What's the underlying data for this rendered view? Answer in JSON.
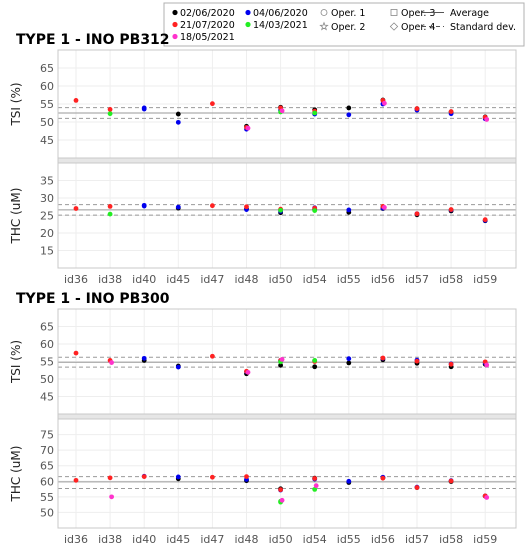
{
  "legend": {
    "dates": [
      {
        "label": "02/06/2020",
        "color": "#000000"
      },
      {
        "label": "04/06/2020",
        "color": "#0000ee"
      },
      {
        "label": "21/07/2020",
        "color": "#ff2222"
      },
      {
        "label": "14/03/2021",
        "color": "#22ee22"
      },
      {
        "label": "18/05/2021",
        "color": "#ff33cc"
      }
    ],
    "operators": [
      {
        "label": "Oper. 1",
        "marker": "circle"
      },
      {
        "label": "Oper. 2",
        "marker": "star"
      },
      {
        "label": "Oper. 3",
        "marker": "square"
      },
      {
        "label": "Oper. 4",
        "marker": "diamond"
      }
    ],
    "lines": [
      {
        "label": "Average",
        "style": "solid"
      },
      {
        "label": "Standard dev.",
        "style": "dashed"
      }
    ]
  },
  "chart_data": [
    {
      "type": "scatter",
      "title": "TYPE 1 - INO PB312",
      "ylabel": "TSI (%)",
      "categories": [
        "id36",
        "id38",
        "id40",
        "id45",
        "id47",
        "id48",
        "id50",
        "id54",
        "id55",
        "id56",
        "id57",
        "id58",
        "id59"
      ],
      "ylim": [
        40,
        70
      ],
      "yticks": [
        45,
        50,
        55,
        60,
        65
      ],
      "average": 52.5,
      "std_band": [
        51,
        54
      ],
      "series": [
        {
          "name": "02/06/2020",
          "color": "#000000",
          "points": [
            [
              3,
              52.2
            ],
            [
              5,
              48.8
            ],
            [
              6,
              54.1
            ],
            [
              7,
              53.4
            ],
            [
              8,
              53.9
            ],
            [
              9,
              56.1
            ],
            [
              10,
              53.7
            ],
            [
              11,
              52.8
            ],
            [
              12,
              51.4
            ]
          ]
        },
        {
          "name": "04/06/2020",
          "color": "#0000ee",
          "points": [
            [
              2,
              53.6
            ],
            [
              2,
              53.9
            ],
            [
              3,
              49.9
            ],
            [
              5,
              48.0
            ],
            [
              6,
              53.3
            ],
            [
              7,
              52.2
            ],
            [
              8,
              52.0
            ],
            [
              9,
              55.0
            ],
            [
              10,
              53.3
            ],
            [
              11,
              52.3
            ],
            [
              12,
              50.9
            ]
          ]
        },
        {
          "name": "21/07/2020",
          "color": "#ff2222",
          "points": [
            [
              0,
              56.0
            ],
            [
              1,
              53.5
            ],
            [
              4,
              55.1
            ],
            [
              5,
              48.5
            ],
            [
              6,
              53.9
            ],
            [
              7,
              53.0
            ],
            [
              9,
              56.0
            ],
            [
              10,
              53.7
            ],
            [
              11,
              52.9
            ],
            [
              12,
              51.3
            ]
          ]
        },
        {
          "name": "14/03/2021",
          "color": "#22ee22",
          "points": [
            [
              1,
              52.3
            ],
            [
              6,
              52.8
            ],
            [
              7,
              52.5
            ]
          ]
        },
        {
          "name": "18/05/2021",
          "color": "#ff33cc",
          "points": [
            [
              5,
              48.3
            ],
            [
              6,
              53.1
            ],
            [
              9,
              55.2
            ],
            [
              12,
              50.7
            ]
          ]
        }
      ]
    },
    {
      "type": "scatter",
      "ylabel": "THC (uM)",
      "categories": [
        "id36",
        "id38",
        "id40",
        "id45",
        "id47",
        "id48",
        "id50",
        "id54",
        "id55",
        "id56",
        "id57",
        "id58",
        "id59"
      ],
      "ylim": [
        10,
        40
      ],
      "yticks": [
        15,
        20,
        25,
        30,
        35
      ],
      "average": 26.6,
      "std_band": [
        25.1,
        28.1
      ],
      "series": [
        {
          "name": "02/06/2020",
          "color": "#000000",
          "points": [
            [
              3,
              27.1
            ],
            [
              5,
              26.9
            ],
            [
              6,
              25.8
            ],
            [
              7,
              26.8
            ],
            [
              8,
              25.9
            ],
            [
              9,
              27.0
            ],
            [
              10,
              25.2
            ],
            [
              11,
              26.3
            ],
            [
              12,
              23.5
            ]
          ]
        },
        {
          "name": "04/06/2020",
          "color": "#0000ee",
          "points": [
            [
              2,
              27.7
            ],
            [
              2,
              27.9
            ],
            [
              3,
              27.4
            ],
            [
              5,
              26.7
            ],
            [
              6,
              26.2
            ],
            [
              7,
              27.2
            ],
            [
              8,
              26.6
            ],
            [
              9,
              27.1
            ],
            [
              10,
              25.5
            ],
            [
              11,
              26.6
            ],
            [
              12,
              23.6
            ]
          ]
        },
        {
          "name": "21/07/2020",
          "color": "#ff2222",
          "points": [
            [
              0,
              27.0
            ],
            [
              1,
              27.6
            ],
            [
              4,
              27.8
            ],
            [
              5,
              27.5
            ],
            [
              6,
              26.8
            ],
            [
              7,
              27.1
            ],
            [
              9,
              27.6
            ],
            [
              10,
              25.5
            ],
            [
              11,
              26.7
            ],
            [
              12,
              23.8
            ]
          ]
        },
        {
          "name": "14/03/2021",
          "color": "#22ee22",
          "points": [
            [
              1,
              25.4
            ],
            [
              6,
              26.5
            ],
            [
              7,
              26.4
            ]
          ]
        },
        {
          "name": "18/05/2021",
          "color": "#ff33cc",
          "points": [
            [
              9,
              27.3
            ]
          ]
        }
      ]
    },
    {
      "type": "scatter",
      "title": "TYPE 1 - INO PB300",
      "ylabel": "TSI (%)",
      "categories": [
        "id36",
        "id38",
        "id40",
        "id45",
        "id47",
        "id48",
        "id50",
        "id54",
        "id55",
        "id56",
        "id57",
        "id58",
        "id59"
      ],
      "ylim": [
        40,
        70
      ],
      "yticks": [
        45,
        50,
        55,
        60,
        65
      ],
      "average": 54.8,
      "std_band": [
        53.4,
        56.2
      ],
      "series": [
        {
          "name": "02/06/2020",
          "color": "#000000",
          "points": [
            [
              2,
              55.3
            ],
            [
              3,
              53.7
            ],
            [
              5,
              51.5
            ],
            [
              6,
              53.9
            ],
            [
              7,
              53.5
            ],
            [
              8,
              54.6
            ],
            [
              9,
              55.5
            ],
            [
              10,
              54.5
            ],
            [
              11,
              53.5
            ],
            [
              12,
              54.2
            ]
          ]
        },
        {
          "name": "04/06/2020",
          "color": "#0000ee",
          "points": [
            [
              2,
              55.9
            ],
            [
              3,
              53.4
            ],
            [
              5,
              52.1
            ],
            [
              6,
              55.3
            ],
            [
              7,
              55.2
            ],
            [
              8,
              55.8
            ],
            [
              9,
              55.9
            ],
            [
              10,
              55.4
            ],
            [
              11,
              54.3
            ],
            [
              12,
              54.6
            ]
          ]
        },
        {
          "name": "21/07/2020",
          "color": "#ff2222",
          "points": [
            [
              0,
              57.4
            ],
            [
              1,
              55.3
            ],
            [
              4,
              56.5
            ],
            [
              5,
              52.2
            ],
            [
              6,
              55.3
            ],
            [
              7,
              55.0
            ],
            [
              9,
              56.0
            ],
            [
              10,
              55.1
            ],
            [
              11,
              54.2
            ],
            [
              12,
              54.9
            ]
          ]
        },
        {
          "name": "14/03/2021",
          "color": "#22ee22",
          "points": [
            [
              6,
              54.9
            ],
            [
              7,
              55.3
            ]
          ]
        },
        {
          "name": "18/05/2021",
          "color": "#ff33cc",
          "points": [
            [
              1,
              54.7
            ],
            [
              5,
              51.9
            ],
            [
              6,
              55.6
            ],
            [
              12,
              54.0
            ]
          ]
        }
      ]
    },
    {
      "type": "scatter",
      "ylabel": "THC (uM)",
      "categories": [
        "id36",
        "id38",
        "id40",
        "id45",
        "id47",
        "id48",
        "id50",
        "id54",
        "id55",
        "id56",
        "id57",
        "id58",
        "id59"
      ],
      "ylim": [
        45,
        80
      ],
      "yticks": [
        50,
        55,
        60,
        65,
        70,
        75
      ],
      "average": 59.8,
      "std_band": [
        57.7,
        61.5
      ],
      "series": [
        {
          "name": "02/06/2020",
          "color": "#000000",
          "points": [
            [
              3,
              60.8
            ],
            [
              5,
              60.2
            ],
            [
              6,
              57.6
            ],
            [
              7,
              61.0
            ],
            [
              8,
              59.6
            ],
            [
              9,
              61.1
            ],
            [
              10,
              58.0
            ],
            [
              11,
              59.9
            ],
            [
              12,
              55.2
            ]
          ]
        },
        {
          "name": "04/06/2020",
          "color": "#0000ee",
          "points": [
            [
              2,
              61.6
            ],
            [
              3,
              61.4
            ],
            [
              5,
              60.6
            ],
            [
              6,
              57.2
            ],
            [
              7,
              60.7
            ],
            [
              8,
              60.0
            ],
            [
              9,
              61.3
            ],
            [
              10,
              58.1
            ],
            [
              11,
              60.2
            ],
            [
              12,
              55.3
            ]
          ]
        },
        {
          "name": "21/07/2020",
          "color": "#ff2222",
          "points": [
            [
              0,
              60.3
            ],
            [
              1,
              61.1
            ],
            [
              2,
              61.5
            ],
            [
              4,
              61.3
            ],
            [
              5,
              61.5
            ],
            [
              6,
              57.3
            ],
            [
              7,
              60.9
            ],
            [
              9,
              61.0
            ],
            [
              10,
              58.0
            ],
            [
              11,
              60.1
            ],
            [
              12,
              55.3
            ]
          ]
        },
        {
          "name": "14/03/2021",
          "color": "#22ee22",
          "points": [
            [
              6,
              53.3
            ],
            [
              6,
              53.6
            ],
            [
              7,
              57.4
            ]
          ]
        },
        {
          "name": "18/05/2021",
          "color": "#ff33cc",
          "points": [
            [
              1,
              55.0
            ],
            [
              6,
              53.9
            ],
            [
              7,
              58.6
            ],
            [
              12,
              54.8
            ]
          ]
        }
      ]
    }
  ]
}
